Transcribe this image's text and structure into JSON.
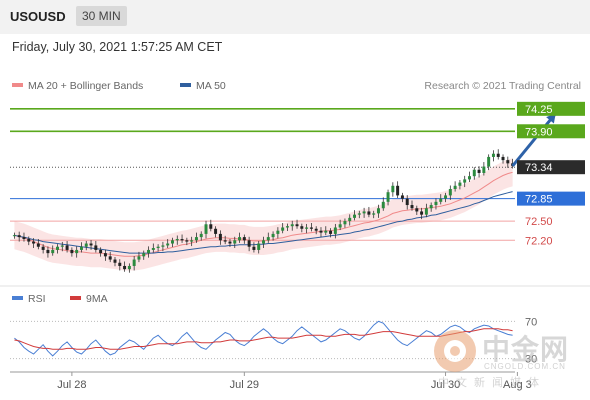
{
  "header": {
    "symbol": "USOUSD",
    "interval": "30 MIN"
  },
  "datetime": "Friday, July 30, 2021 1:57:25 AM CET",
  "chart_data": [
    {
      "type": "candlestick",
      "legend": [
        {
          "label": "MA 20 + Bollinger Bands",
          "color": "#f08a8a"
        },
        {
          "label": "MA 50",
          "color": "#2f5f9e"
        }
      ],
      "credit": "Research © 2021 Trading Central",
      "ylim": [
        71.55,
        74.45
      ],
      "x_ticks": [
        {
          "label": "Jul 28",
          "index": 12
        },
        {
          "label": "Jul 29",
          "index": 48
        },
        {
          "label": "Jul 30",
          "index": 90
        },
        {
          "label": "Aug 3",
          "index": 105
        }
      ],
      "levels": [
        {
          "value": 74.25,
          "label": "74.25",
          "line_color": "#5aa81c",
          "tag_bg": "#5aa81c",
          "tag_color": "#ffffff",
          "style": "solid"
        },
        {
          "value": 73.9,
          "label": "73.90",
          "line_color": "#5aa81c",
          "tag_bg": "#5aa81c",
          "tag_color": "#ffffff",
          "style": "solid"
        },
        {
          "value": 73.34,
          "label": "73.34",
          "line_color": "#555555",
          "tag_bg": "#2b2b2b",
          "tag_color": "#ffffff",
          "style": "dotted"
        },
        {
          "value": 72.85,
          "label": "72.85",
          "line_color": "#2e6fd8",
          "tag_bg": "#2e6fd8",
          "tag_color": "#ffffff",
          "style": "solid"
        },
        {
          "value": 72.5,
          "label": "72.50",
          "line_color": "#f2a3a3",
          "tag_bg": "none",
          "tag_color": "#d24a4a",
          "style": "solid"
        },
        {
          "value": 72.2,
          "label": "72.20",
          "line_color": "#f2a3a3",
          "tag_bg": "none",
          "tag_color": "#d24a4a",
          "style": "solid"
        }
      ],
      "arrow": {
        "from_index": 104,
        "from_value": 73.36,
        "to_index": 113,
        "to_value": 74.18,
        "color": "#2e62a8"
      },
      "closes": [
        72.28,
        72.25,
        72.22,
        72.18,
        72.15,
        72.1,
        72.05,
        72.0,
        72.05,
        72.1,
        72.12,
        72.05,
        72.0,
        72.05,
        72.1,
        72.15,
        72.12,
        72.05,
        72.0,
        71.95,
        71.9,
        71.85,
        71.8,
        71.75,
        71.8,
        71.9,
        71.95,
        72.0,
        72.05,
        72.08,
        72.1,
        72.12,
        72.15,
        72.2,
        72.22,
        72.2,
        72.18,
        72.2,
        72.25,
        72.3,
        72.45,
        72.38,
        72.3,
        72.2,
        72.18,
        72.15,
        72.2,
        72.25,
        72.2,
        72.1,
        72.05,
        72.15,
        72.2,
        72.25,
        72.3,
        72.35,
        72.4,
        72.42,
        72.45,
        72.42,
        72.38,
        72.4,
        72.38,
        72.35,
        72.32,
        72.35,
        72.3,
        72.4,
        72.45,
        72.5,
        72.55,
        72.6,
        72.62,
        72.65,
        72.6,
        72.62,
        72.7,
        72.8,
        72.95,
        73.05,
        72.9,
        72.85,
        72.75,
        72.7,
        72.65,
        72.6,
        72.7,
        72.75,
        72.8,
        72.85,
        72.9,
        73.0,
        73.05,
        73.1,
        73.15,
        73.2,
        73.3,
        73.25,
        73.35,
        73.5,
        73.55,
        73.5,
        73.45,
        73.4,
        73.36
      ],
      "ma20": [
        72.28,
        72.26,
        72.24,
        72.21,
        72.18,
        72.15,
        72.12,
        72.09,
        72.07,
        72.06,
        72.05,
        72.04,
        72.03,
        72.02,
        72.02,
        72.01,
        72.0,
        72.0,
        72.0,
        71.99,
        71.98,
        71.97,
        71.96,
        71.95,
        71.95,
        71.95,
        71.96,
        71.97,
        71.99,
        72.01,
        72.03,
        72.05,
        72.07,
        72.09,
        72.11,
        72.13,
        72.14,
        72.16,
        72.18,
        72.2,
        72.22,
        72.23,
        72.24,
        72.24,
        72.24,
        72.23,
        72.23,
        72.22,
        72.22,
        72.2,
        72.19,
        72.19,
        72.19,
        72.2,
        72.21,
        72.23,
        72.24,
        72.26,
        72.28,
        72.29,
        72.3,
        72.31,
        72.32,
        72.33,
        72.34,
        72.35,
        72.35,
        72.36,
        72.37,
        72.39,
        72.41,
        72.43,
        72.45,
        72.47,
        72.48,
        72.5,
        72.52,
        72.55,
        72.58,
        72.62,
        72.64,
        72.66,
        72.67,
        72.68,
        72.69,
        72.69,
        72.7,
        72.71,
        72.72,
        72.73,
        72.75,
        72.77,
        72.8,
        72.83,
        72.86,
        72.9,
        72.94,
        72.98,
        73.03,
        73.08,
        73.13,
        73.17,
        73.21,
        73.24,
        73.26
      ],
      "ma50": [
        72.28,
        72.26,
        72.25,
        72.23,
        72.21,
        72.2,
        72.18,
        72.17,
        72.16,
        72.15,
        72.14,
        72.13,
        72.12,
        72.11,
        72.1,
        72.09,
        72.08,
        72.07,
        72.06,
        72.05,
        72.04,
        72.03,
        72.02,
        72.01,
        72.0,
        72.0,
        72.0,
        72.0,
        72.0,
        72.0,
        72.01,
        72.01,
        72.02,
        72.02,
        72.03,
        72.04,
        72.05,
        72.06,
        72.07,
        72.08,
        72.09,
        72.1,
        72.1,
        72.11,
        72.11,
        72.12,
        72.12,
        72.13,
        72.13,
        72.13,
        72.13,
        72.14,
        72.14,
        72.15,
        72.15,
        72.16,
        72.17,
        72.18,
        72.19,
        72.2,
        72.21,
        72.22,
        72.23,
        72.24,
        72.25,
        72.26,
        72.27,
        72.28,
        72.29,
        72.3,
        72.31,
        72.33,
        72.34,
        72.36,
        72.37,
        72.39,
        72.41,
        72.43,
        72.45,
        72.47,
        72.49,
        72.5,
        72.52,
        72.53,
        72.55,
        72.56,
        72.57,
        72.59,
        72.6,
        72.62,
        72.64,
        72.66,
        72.68,
        72.7,
        72.72,
        72.74,
        72.77,
        72.79,
        72.82,
        72.85,
        72.88,
        72.9,
        72.92,
        72.94,
        72.96
      ],
      "bb_width": 0.22
    },
    {
      "type": "line",
      "legend": [
        {
          "label": "RSI",
          "color": "#4a7fd4"
        },
        {
          "label": "9MA",
          "color": "#d23b3b"
        }
      ],
      "ylim": [
        20,
        80
      ],
      "levels": [
        {
          "value": 70,
          "label": "70"
        },
        {
          "value": 30,
          "label": "30"
        }
      ],
      "rsi": [
        52,
        48,
        42,
        38,
        35,
        40,
        45,
        38,
        33,
        38,
        44,
        48,
        42,
        37,
        35,
        40,
        46,
        50,
        44,
        38,
        34,
        36,
        42,
        46,
        50,
        48,
        44,
        40,
        46,
        52,
        55,
        50,
        46,
        44,
        48,
        54,
        58,
        52,
        46,
        42,
        40,
        45,
        50,
        54,
        58,
        56,
        50,
        46,
        44,
        48,
        54,
        58,
        62,
        58,
        52,
        48,
        46,
        50,
        54,
        60,
        64,
        60,
        56,
        52,
        48,
        50,
        54,
        58,
        62,
        60,
        56,
        52,
        50,
        54,
        60,
        66,
        70,
        68,
        62,
        56,
        50,
        46,
        44,
        48,
        52,
        56,
        60,
        58,
        54,
        56,
        60,
        64,
        66,
        64,
        60,
        58,
        62,
        64,
        66,
        65,
        62,
        60,
        58,
        56,
        55
      ],
      "ma9": [
        50,
        49,
        47,
        45,
        43,
        42,
        41,
        41,
        40,
        40,
        40,
        41,
        41,
        40,
        40,
        40,
        41,
        42,
        42,
        41,
        40,
        40,
        40,
        41,
        42,
        43,
        43,
        43,
        44,
        45,
        46,
        46,
        46,
        46,
        46,
        47,
        48,
        48,
        48,
        47,
        47,
        47,
        48,
        48,
        49,
        50,
        50,
        49,
        49,
        49,
        50,
        51,
        52,
        53,
        53,
        52,
        52,
        52,
        52,
        53,
        54,
        55,
        55,
        55,
        55,
        54,
        54,
        54,
        55,
        56,
        56,
        56,
        55,
        55,
        56,
        57,
        58,
        59,
        59,
        59,
        58,
        57,
        56,
        55,
        54,
        54,
        54,
        54,
        54,
        54,
        55,
        56,
        57,
        58,
        59,
        59,
        60,
        61,
        62,
        62,
        62,
        62,
        61,
        61,
        60
      ]
    }
  ]
}
